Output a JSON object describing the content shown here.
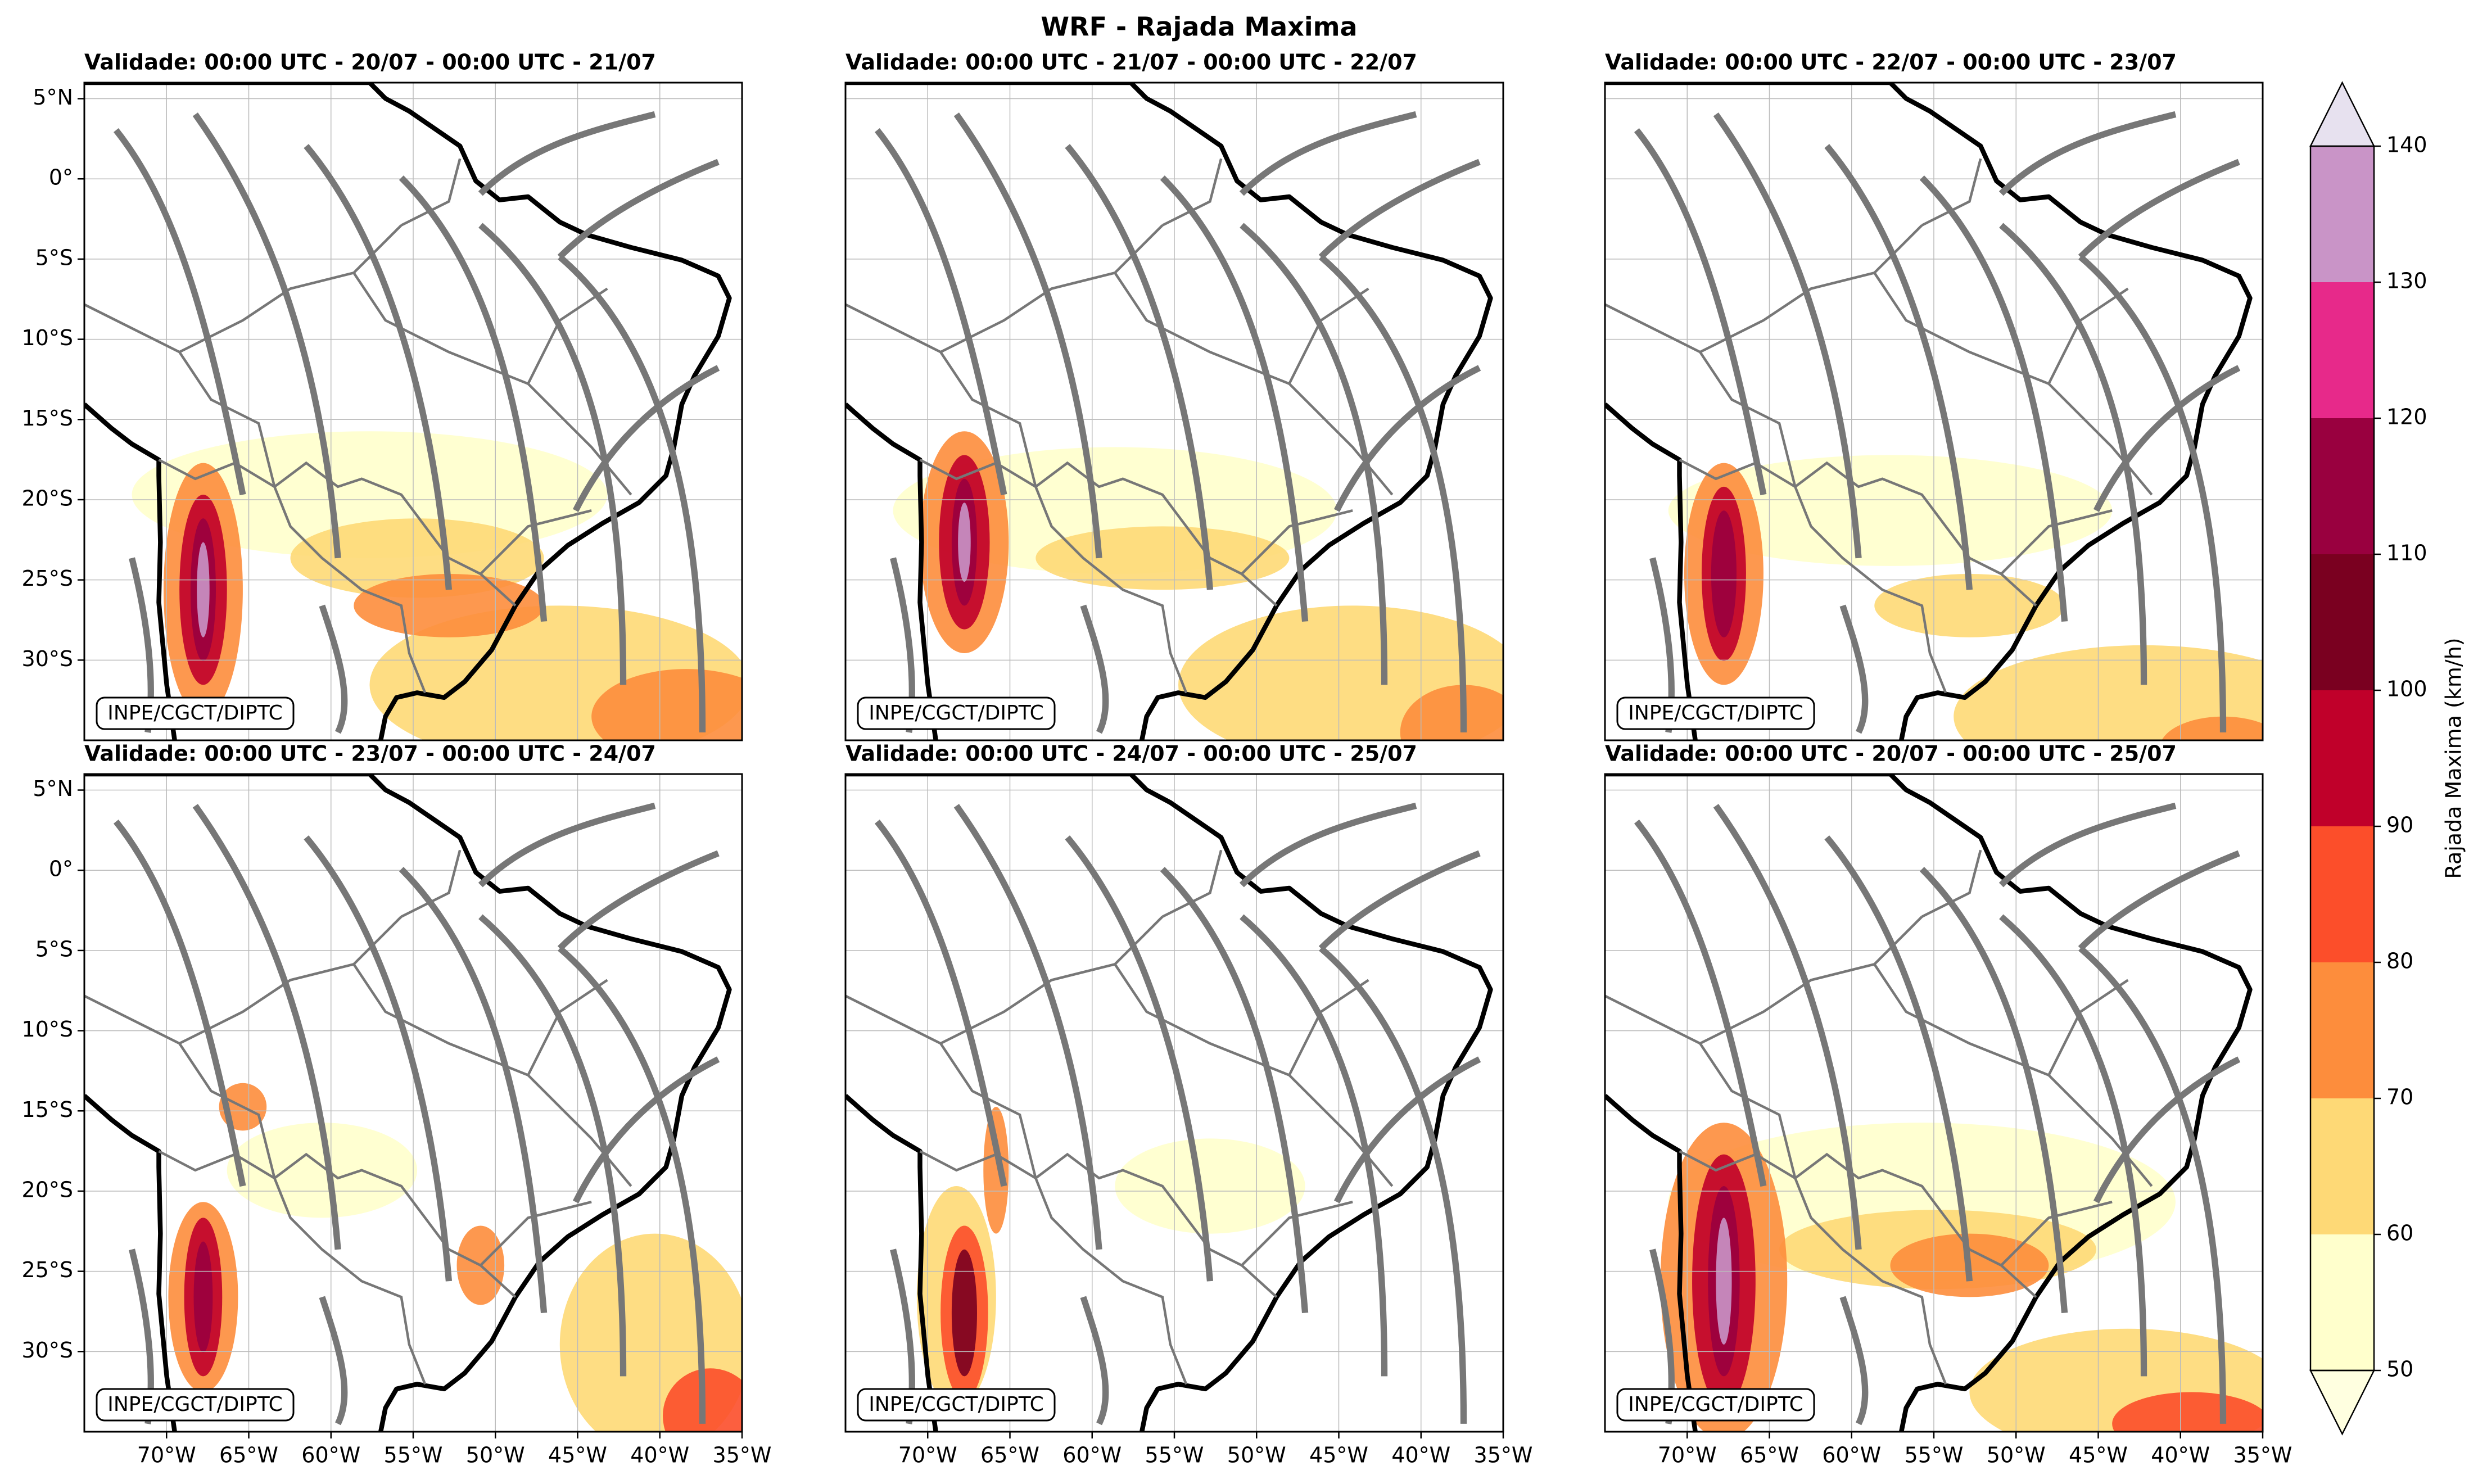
{
  "figure": {
    "title": "WRF - Rajada Maxima",
    "panels": [
      {
        "title": "Validade: 00:00 UTC - 20/07 - 00:00 UTC - 21/07"
      },
      {
        "title": "Validade: 00:00 UTC - 21/07 - 00:00 UTC - 22/07"
      },
      {
        "title": "Validade: 00:00 UTC - 22/07 - 00:00 UTC - 23/07"
      },
      {
        "title": "Validade: 00:00 UTC - 23/07 - 00:00 UTC - 24/07"
      },
      {
        "title": "Validade: 00:00 UTC - 24/07 - 00:00 UTC - 25/07"
      },
      {
        "title": "Validade: 00:00 UTC - 20/07 - 00:00 UTC - 25/07"
      }
    ],
    "credit": "INPE/CGCT/DIPTC",
    "lonlim": [
      -75,
      -35
    ],
    "latlim": [
      -35,
      6
    ],
    "lon_ticks": [
      {
        "value": -70,
        "label": "70°W"
      },
      {
        "value": -65,
        "label": "65°W"
      },
      {
        "value": -60,
        "label": "60°W"
      },
      {
        "value": -55,
        "label": "55°W"
      },
      {
        "value": -50,
        "label": "50°W"
      },
      {
        "value": -45,
        "label": "45°W"
      },
      {
        "value": -40,
        "label": "40°W"
      },
      {
        "value": -35,
        "label": "35°W"
      }
    ],
    "lat_ticks": [
      {
        "value": 5,
        "label": "5°N"
      },
      {
        "value": 0,
        "label": "0°"
      },
      {
        "value": -5,
        "label": "5°S"
      },
      {
        "value": -10,
        "label": "10°S"
      },
      {
        "value": -15,
        "label": "15°S"
      },
      {
        "value": -20,
        "label": "20°S"
      },
      {
        "value": -25,
        "label": "25°S"
      },
      {
        "value": -30,
        "label": "30°S"
      }
    ],
    "colorbar": {
      "label": "Rajada Maxima (km/h)",
      "levels": [
        50,
        60,
        70,
        80,
        90,
        100,
        110,
        120,
        130,
        140
      ],
      "colors": [
        "#ffffcc",
        "#fed976",
        "#fd8d3c",
        "#fc4e2a",
        "#c0002a",
        "#7a0020",
        "#99003f",
        "#e7298a",
        "#c994c7"
      ],
      "under_color": "#ffffe0",
      "over_color": "#e7e1ef"
    }
  }
}
